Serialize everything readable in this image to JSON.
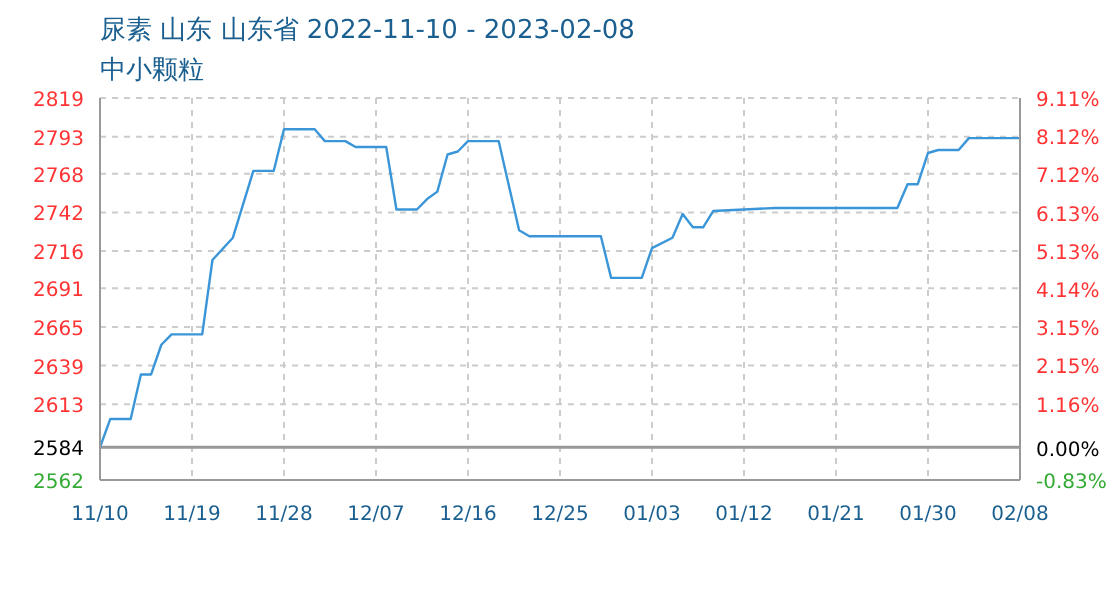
{
  "chart_data": {
    "type": "line",
    "title": "尿素 山东 山东省 2022-11-10 - 2023-02-08",
    "subtitle": "中小颗粒",
    "x": [
      "2022-11-10",
      "2022-11-11",
      "2022-11-13",
      "2022-11-14",
      "2022-11-15",
      "2022-11-16",
      "2022-11-17",
      "2022-11-20",
      "2022-11-21",
      "2022-11-23",
      "2022-11-25",
      "2022-11-27",
      "2022-11-28",
      "2022-12-01",
      "2022-12-02",
      "2022-12-04",
      "2022-12-05",
      "2022-12-08",
      "2022-12-09",
      "2022-12-11",
      "2022-12-12",
      "2022-12-13",
      "2022-12-14",
      "2022-12-15",
      "2022-12-16",
      "2022-12-19",
      "2022-12-21",
      "2022-12-22",
      "2022-12-29",
      "2022-12-30",
      "2023-01-02",
      "2023-01-03",
      "2023-01-05",
      "2023-01-06",
      "2023-01-07",
      "2023-01-08",
      "2023-01-09",
      "2023-01-15",
      "2023-01-27",
      "2023-01-28",
      "2023-01-29",
      "2023-01-30",
      "2023-01-31",
      "2023-02-02",
      "2023-02-03",
      "2023-02-08"
    ],
    "series": [
      {
        "color": "#3a96d8",
        "values": [
          2584,
          2603,
          2603,
          2633,
          2633,
          2653,
          2660,
          2660,
          2710,
          2725,
          2770,
          2770,
          2798,
          2798,
          2790,
          2790,
          2786,
          2786,
          2744,
          2744,
          2751,
          2756,
          2781,
          2783,
          2790,
          2790,
          2730,
          2726,
          2726,
          2698,
          2698,
          2718,
          2725,
          2741,
          2732,
          2732,
          2743,
          2745,
          2745,
          2761,
          2761,
          2782,
          2784,
          2784,
          2792,
          2792
        ]
      }
    ],
    "xlim": [
      "2022-11-10",
      "2023-02-08"
    ],
    "xticks": [
      {
        "value": "2022-11-10",
        "label": "11/10"
      },
      {
        "value": "2022-11-19",
        "label": "11/19"
      },
      {
        "value": "2022-11-28",
        "label": "11/28"
      },
      {
        "value": "2022-12-07",
        "label": "12/07"
      },
      {
        "value": "2022-12-16",
        "label": "12/16"
      },
      {
        "value": "2022-12-25",
        "label": "12/25"
      },
      {
        "value": "2023-01-03",
        "label": "01/03"
      },
      {
        "value": "2023-01-12",
        "label": "01/12"
      },
      {
        "value": "2023-01-21",
        "label": "01/21"
      },
      {
        "value": "2023-01-30",
        "label": "01/30"
      },
      {
        "value": "2023-02-08",
        "label": "02/08"
      }
    ],
    "ylim": [
      2562,
      2819
    ],
    "yticks": [
      2562,
      2584,
      2613,
      2639,
      2665,
      2691,
      2716,
      2742,
      2768,
      2793,
      2819
    ],
    "y2lim": [
      -0.83,
      9.11
    ],
    "y2ticks": [
      {
        "value": -0.83,
        "label": "-0.83%"
      },
      {
        "value": 0,
        "label": "0.00%"
      },
      {
        "value": 1.16,
        "label": "1.16%"
      },
      {
        "value": 2.15,
        "label": "2.15%"
      },
      {
        "value": 3.15,
        "label": "3.15%"
      },
      {
        "value": 4.14,
        "label": "4.14%"
      },
      {
        "value": 5.13,
        "label": "5.13%"
      },
      {
        "value": 6.13,
        "label": "6.13%"
      },
      {
        "value": 7.12,
        "label": "7.12%"
      },
      {
        "value": 8.12,
        "label": "8.12%"
      },
      {
        "value": 9.11,
        "label": "9.11%"
      }
    ],
    "ref_lines": [
      {
        "axis": "y",
        "value": 2584,
        "color": "#999999"
      }
    ],
    "grid": true,
    "marker": "none",
    "line_style": "solid"
  }
}
